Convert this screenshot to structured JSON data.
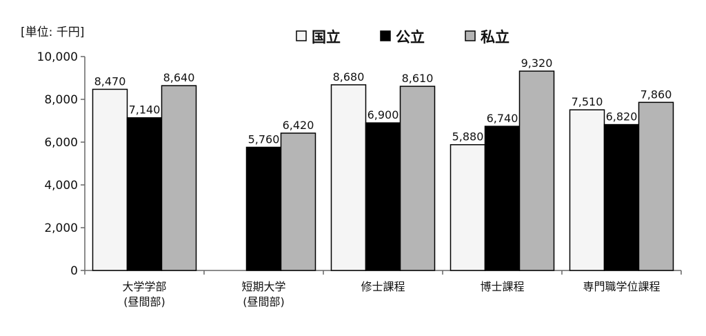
{
  "chart_data": {
    "type": "bar",
    "unit_label": "[単位: 千円]",
    "categories": [
      [
        "大学学部",
        "(昼間部)"
      ],
      [
        "短期大学",
        "(昼間部)"
      ],
      [
        "修士課程"
      ],
      [
        "博士課程"
      ],
      [
        "専門職学位課程"
      ]
    ],
    "series": [
      {
        "name": "国立",
        "color": "#f5f5f5",
        "values": [
          8470,
          null,
          8680,
          5880,
          7510
        ],
        "labels": [
          "8,470",
          "",
          "8,680",
          "5,880",
          "7,510"
        ]
      },
      {
        "name": "公立",
        "color": "#000000",
        "values": [
          7140,
          5760,
          6900,
          6740,
          6820
        ],
        "labels": [
          "7,140",
          "5,760",
          "6,900",
          "6,740",
          "6,820"
        ]
      },
      {
        "name": "私立",
        "color": "#b5b5b5",
        "values": [
          8640,
          6420,
          8610,
          9320,
          7860
        ],
        "labels": [
          "8,640",
          "6,420",
          "8,610",
          "9,320",
          "7,860"
        ]
      }
    ],
    "yticks": [
      0,
      2000,
      4000,
      6000,
      8000,
      10000
    ],
    "ytick_labels": [
      "0",
      "2,000",
      "4,000",
      "6,000",
      "8,000",
      "10,000"
    ],
    "ylim": [
      0,
      10000
    ],
    "grid": false,
    "legend_position": "top-center"
  }
}
